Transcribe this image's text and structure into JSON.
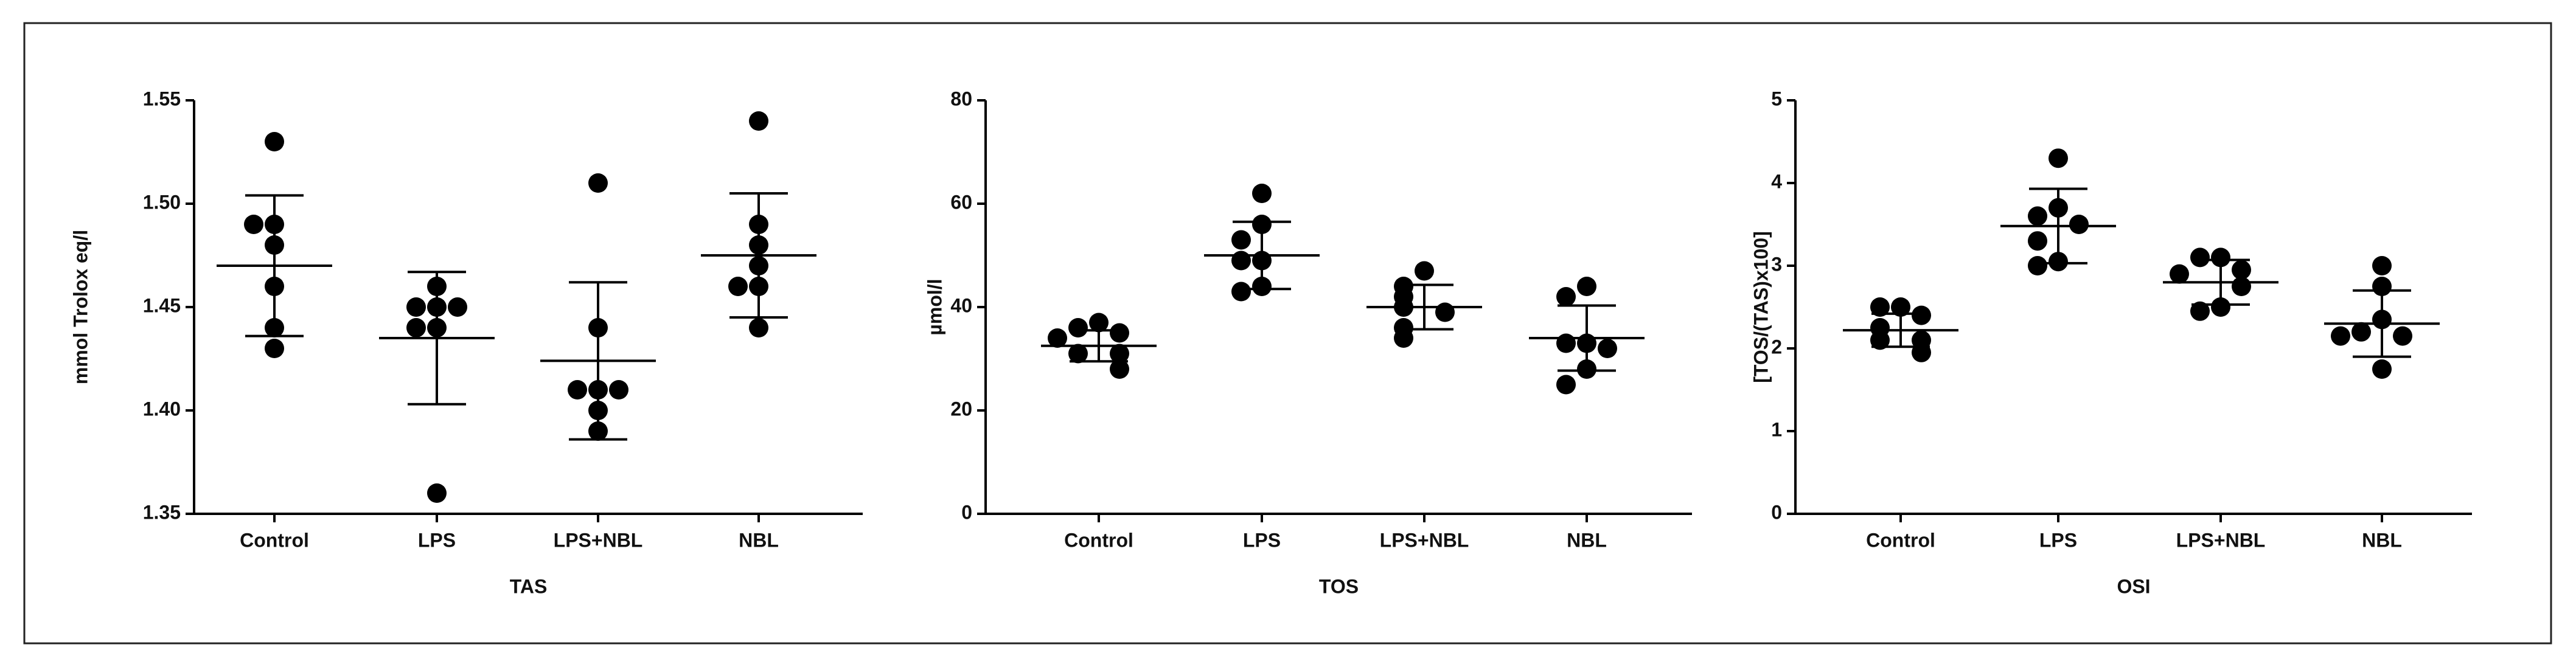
{
  "chart_data": [
    {
      "type": "dotplot",
      "xlabel": "TAS",
      "ylabel": "mmol Trolox eq/l",
      "categories": [
        "Control",
        "LPS",
        "LPS+NBL",
        "NBL"
      ],
      "values": [
        [
          1.53,
          1.49,
          1.49,
          1.48,
          1.46,
          1.44,
          1.43
        ],
        [
          1.46,
          1.45,
          1.45,
          1.45,
          1.44,
          1.44,
          1.36
        ],
        [
          1.51,
          1.44,
          1.41,
          1.41,
          1.41,
          1.4,
          1.39
        ],
        [
          1.54,
          1.49,
          1.48,
          1.47,
          1.46,
          1.46,
          1.44
        ]
      ],
      "mean": [
        1.47,
        1.435,
        1.424,
        1.475
      ],
      "sd": [
        0.034,
        0.032,
        0.038,
        0.03
      ],
      "color": "#000000",
      "ylim": [
        1.35,
        1.55
      ],
      "yticks": [
        1.35,
        {
          "value": 1.4,
          "label": "1.40"
        },
        1.45,
        {
          "value": 1.5,
          "label": "1.50"
        },
        1.55
      ]
    },
    {
      "type": "dotplot",
      "xlabel": "TOS",
      "ylabel": "µmol/l",
      "categories": [
        "Control",
        "LPS",
        "LPS+NBL",
        "NBL"
      ],
      "values": [
        [
          37,
          36,
          35,
          34,
          31,
          31,
          28
        ],
        [
          62,
          56,
          53,
          49,
          49,
          44,
          43
        ],
        [
          47,
          44,
          42,
          40,
          39,
          36,
          34
        ],
        [
          44,
          42,
          33,
          33,
          32,
          28,
          25
        ]
      ],
      "mean": [
        32.5,
        50,
        40,
        34
      ],
      "sd": [
        3,
        6.5,
        4.3,
        6.3
      ],
      "color": "#000000",
      "ylim": [
        0,
        80
      ],
      "yticks": [
        0,
        20,
        40,
        60,
        80
      ]
    },
    {
      "type": "dotplot",
      "xlabel": "OSI",
      "ylabel": "[TOS/(TAS)x100]",
      "categories": [
        "Control",
        "LPS",
        "LPS+NBL",
        "NBL"
      ],
      "values": [
        [
          2.5,
          2.5,
          2.4,
          2.25,
          2.1,
          2.1,
          1.95
        ],
        [
          4.3,
          3.7,
          3.6,
          3.5,
          3.3,
          3.05,
          3.0
        ],
        [
          3.1,
          3.1,
          2.95,
          2.9,
          2.75,
          2.5,
          2.45
        ],
        [
          3.0,
          2.75,
          2.35,
          2.2,
          2.15,
          2.15,
          1.75
        ]
      ],
      "mean": [
        2.22,
        3.48,
        2.8,
        2.3
      ],
      "sd": [
        0.2,
        0.45,
        0.27,
        0.4
      ],
      "color": "#000000",
      "ylim": [
        0,
        5
      ],
      "yticks": [
        0,
        1,
        2,
        3,
        4,
        5
      ]
    }
  ]
}
